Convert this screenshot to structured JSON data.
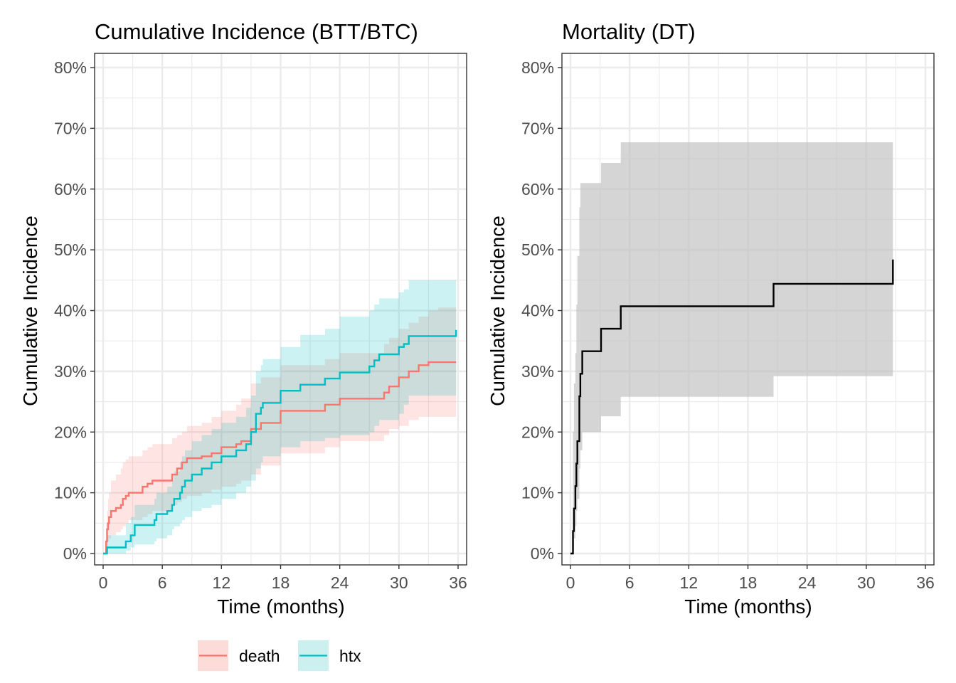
{
  "chart_data": [
    {
      "type": "line",
      "subtype": "step",
      "title": "Cumulative Incidence (BTT/BTC)",
      "xlabel": "Time (months)",
      "ylabel": "Cumulative Incidence",
      "xlim": [
        0,
        36
      ],
      "ylim": [
        0,
        0.8
      ],
      "xticks": [
        0,
        6,
        12,
        18,
        24,
        30,
        36
      ],
      "xtick_labels": [
        "0",
        "6",
        "12",
        "18",
        "24",
        "30",
        "36"
      ],
      "yticks": [
        0,
        0.1,
        0.2,
        0.3,
        0.4,
        0.5,
        0.6,
        0.7,
        0.8
      ],
      "ytick_labels": [
        "0%",
        "10%",
        "20%",
        "30%",
        "40%",
        "50%",
        "60%",
        "70%",
        "80%"
      ],
      "grid": true,
      "legend": "bottom",
      "series": [
        {
          "name": "death",
          "color": "#f8766d",
          "x": [
            0,
            0.3,
            0.4,
            0.5,
            0.6,
            0.8,
            1.3,
            1.8,
            2.0,
            2.3,
            2.6,
            3.0,
            4.0,
            4.5,
            5.0,
            7.0,
            7.5,
            8.0,
            8.5,
            10.0,
            11.0,
            12.0,
            13.5,
            14.0,
            15.0,
            15.5,
            16.0,
            18.0,
            22.5,
            24.0,
            28.5,
            29.0,
            30.0,
            31.0,
            32.0,
            33.0,
            34.0,
            35.8
          ],
          "y": [
            0,
            0.02,
            0.04,
            0.05,
            0.06,
            0.07,
            0.075,
            0.08,
            0.09,
            0.095,
            0.1,
            0.1,
            0.11,
            0.115,
            0.12,
            0.13,
            0.14,
            0.15,
            0.157,
            0.16,
            0.165,
            0.175,
            0.18,
            0.185,
            0.205,
            0.205,
            0.215,
            0.235,
            0.245,
            0.255,
            0.265,
            0.275,
            0.29,
            0.3,
            0.31,
            0.315,
            0.315,
            0.315
          ],
          "lower": [
            0,
            0.005,
            0.01,
            0.02,
            0.025,
            0.03,
            0.035,
            0.04,
            0.045,
            0.05,
            0.055,
            0.055,
            0.06,
            0.065,
            0.07,
            0.08,
            0.085,
            0.09,
            0.095,
            0.1,
            0.105,
            0.11,
            0.115,
            0.12,
            0.13,
            0.13,
            0.145,
            0.165,
            0.175,
            0.185,
            0.195,
            0.205,
            0.21,
            0.22,
            0.225,
            0.225,
            0.225,
            0.225
          ],
          "upper": [
            0,
            0.05,
            0.07,
            0.09,
            0.1,
            0.12,
            0.13,
            0.14,
            0.15,
            0.155,
            0.16,
            0.16,
            0.17,
            0.175,
            0.18,
            0.19,
            0.195,
            0.2,
            0.21,
            0.215,
            0.225,
            0.235,
            0.245,
            0.255,
            0.28,
            0.28,
            0.29,
            0.31,
            0.32,
            0.33,
            0.345,
            0.355,
            0.37,
            0.38,
            0.39,
            0.4,
            0.405,
            0.405
          ]
        },
        {
          "name": "htx",
          "color": "#00bfc4",
          "x": [
            0,
            0.4,
            2.3,
            2.8,
            3.2,
            5.2,
            5.4,
            6.5,
            7.0,
            7.2,
            7.8,
            8.0,
            8.3,
            9.0,
            10.0,
            11.0,
            12.0,
            13.5,
            14.5,
            15.0,
            15.5,
            16.0,
            16.2,
            18.0,
            20.0,
            22.5,
            24.0,
            27.0,
            27.5,
            28.0,
            30.0,
            30.5,
            31.0,
            35.8
          ],
          "y": [
            0,
            0.01,
            0.02,
            0.03,
            0.047,
            0.055,
            0.065,
            0.07,
            0.08,
            0.09,
            0.1,
            0.11,
            0.12,
            0.13,
            0.14,
            0.15,
            0.16,
            0.17,
            0.18,
            0.2,
            0.23,
            0.24,
            0.248,
            0.268,
            0.278,
            0.288,
            0.298,
            0.308,
            0.318,
            0.328,
            0.34,
            0.345,
            0.358,
            0.368
          ],
          "lower": [
            0,
            0,
            0.005,
            0.01,
            0.015,
            0.02,
            0.025,
            0.03,
            0.04,
            0.045,
            0.05,
            0.055,
            0.06,
            0.07,
            0.075,
            0.08,
            0.09,
            0.1,
            0.11,
            0.12,
            0.14,
            0.15,
            0.16,
            0.175,
            0.185,
            0.19,
            0.195,
            0.2,
            0.21,
            0.22,
            0.23,
            0.245,
            0.26,
            0.26
          ],
          "upper": [
            0,
            0.03,
            0.05,
            0.06,
            0.08,
            0.09,
            0.1,
            0.11,
            0.12,
            0.135,
            0.15,
            0.16,
            0.17,
            0.185,
            0.195,
            0.205,
            0.215,
            0.225,
            0.24,
            0.26,
            0.3,
            0.31,
            0.32,
            0.34,
            0.36,
            0.37,
            0.39,
            0.4,
            0.41,
            0.42,
            0.43,
            0.435,
            0.45,
            0.45
          ]
        }
      ]
    },
    {
      "type": "line",
      "subtype": "step",
      "title": "Mortality (DT)",
      "xlabel": "Time (months)",
      "ylabel": "Cumulative Incidence",
      "xlim": [
        0,
        36
      ],
      "ylim": [
        0,
        0.8
      ],
      "xticks": [
        0,
        6,
        12,
        18,
        24,
        30,
        36
      ],
      "xtick_labels": [
        "0",
        "6",
        "12",
        "18",
        "24",
        "30",
        "36"
      ],
      "yticks": [
        0,
        0.1,
        0.2,
        0.3,
        0.4,
        0.5,
        0.6,
        0.7,
        0.8
      ],
      "ytick_labels": [
        "0%",
        "10%",
        "20%",
        "30%",
        "40%",
        "50%",
        "60%",
        "70%",
        "80%"
      ],
      "grid": true,
      "series": [
        {
          "color": "#000000",
          "band_color": "#bebebe",
          "x": [
            0,
            0.25,
            0.35,
            0.5,
            0.6,
            0.7,
            0.9,
            1.0,
            1.2,
            3.1,
            5.1,
            20.6,
            32.7
          ],
          "y": [
            0,
            0.037,
            0.074,
            0.111,
            0.148,
            0.185,
            0.259,
            0.296,
            0.333,
            0.37,
            0.407,
            0.444,
            0.484
          ],
          "lower": [
            0,
            0.005,
            0.025,
            0.045,
            0.07,
            0.09,
            0.14,
            0.17,
            0.2,
            0.226,
            0.258,
            0.292,
            0.327
          ],
          "upper": [
            0,
            0.2,
            0.28,
            0.33,
            0.41,
            0.49,
            0.57,
            0.61,
            0.61,
            0.643,
            0.677,
            0.677,
            0.716
          ]
        }
      ]
    }
  ],
  "legend": {
    "items": [
      {
        "label": "death",
        "line": "#f8766d",
        "fill": "#fddbd8"
      },
      {
        "label": "htx",
        "line": "#00bfc4",
        "fill": "#cceff0"
      }
    ]
  }
}
